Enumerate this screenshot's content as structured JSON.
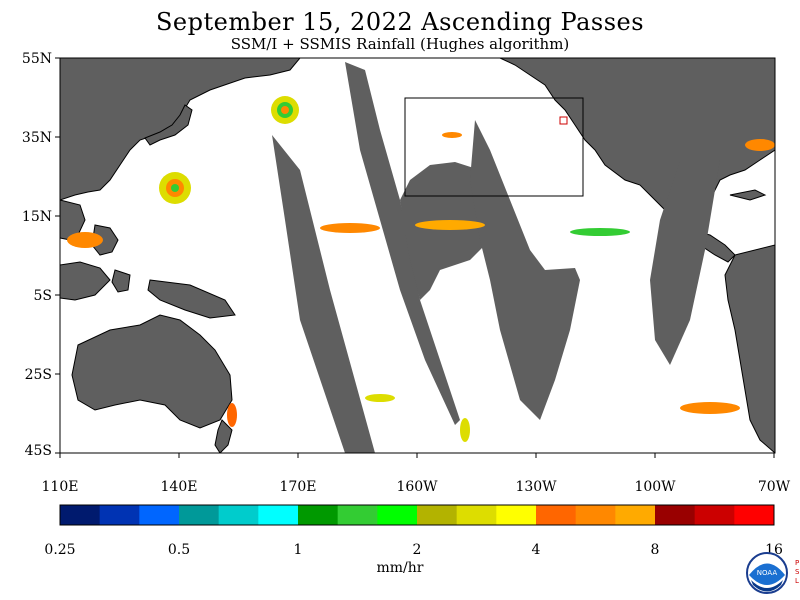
{
  "title": "September 15, 2022  Ascending Passes",
  "subtitle": "SSM/I + SSMIS Rainfall (Hughes algorithm)",
  "lat_labels": [
    "55N",
    "35N",
    "15N",
    "5S",
    "25S",
    "45S"
  ],
  "lon_labels": [
    "110E",
    "140E",
    "170E",
    "160W",
    "130W",
    "100W",
    "70W"
  ],
  "colorbar": {
    "colors": [
      "#001a6e",
      "#0033b3",
      "#0066ff",
      "#009999",
      "#00cccc",
      "#00ffff",
      "#009900",
      "#33cc33",
      "#00ff00",
      "#b3b300",
      "#dddd00",
      "#ffff00",
      "#ff6600",
      "#ff8800",
      "#ffaa00",
      "#990000",
      "#cc0000",
      "#ff0000"
    ],
    "tick_labels": [
      "0.25",
      "0.5",
      "1",
      "2",
      "4",
      "8",
      "16"
    ],
    "unit": "mm/hr"
  },
  "logo": {
    "name": "NOAA",
    "side_text": "PSL"
  },
  "colors": {
    "land": "#5f5f5f",
    "ocean": "#ffffff",
    "no_data": "#5f5f5f"
  }
}
